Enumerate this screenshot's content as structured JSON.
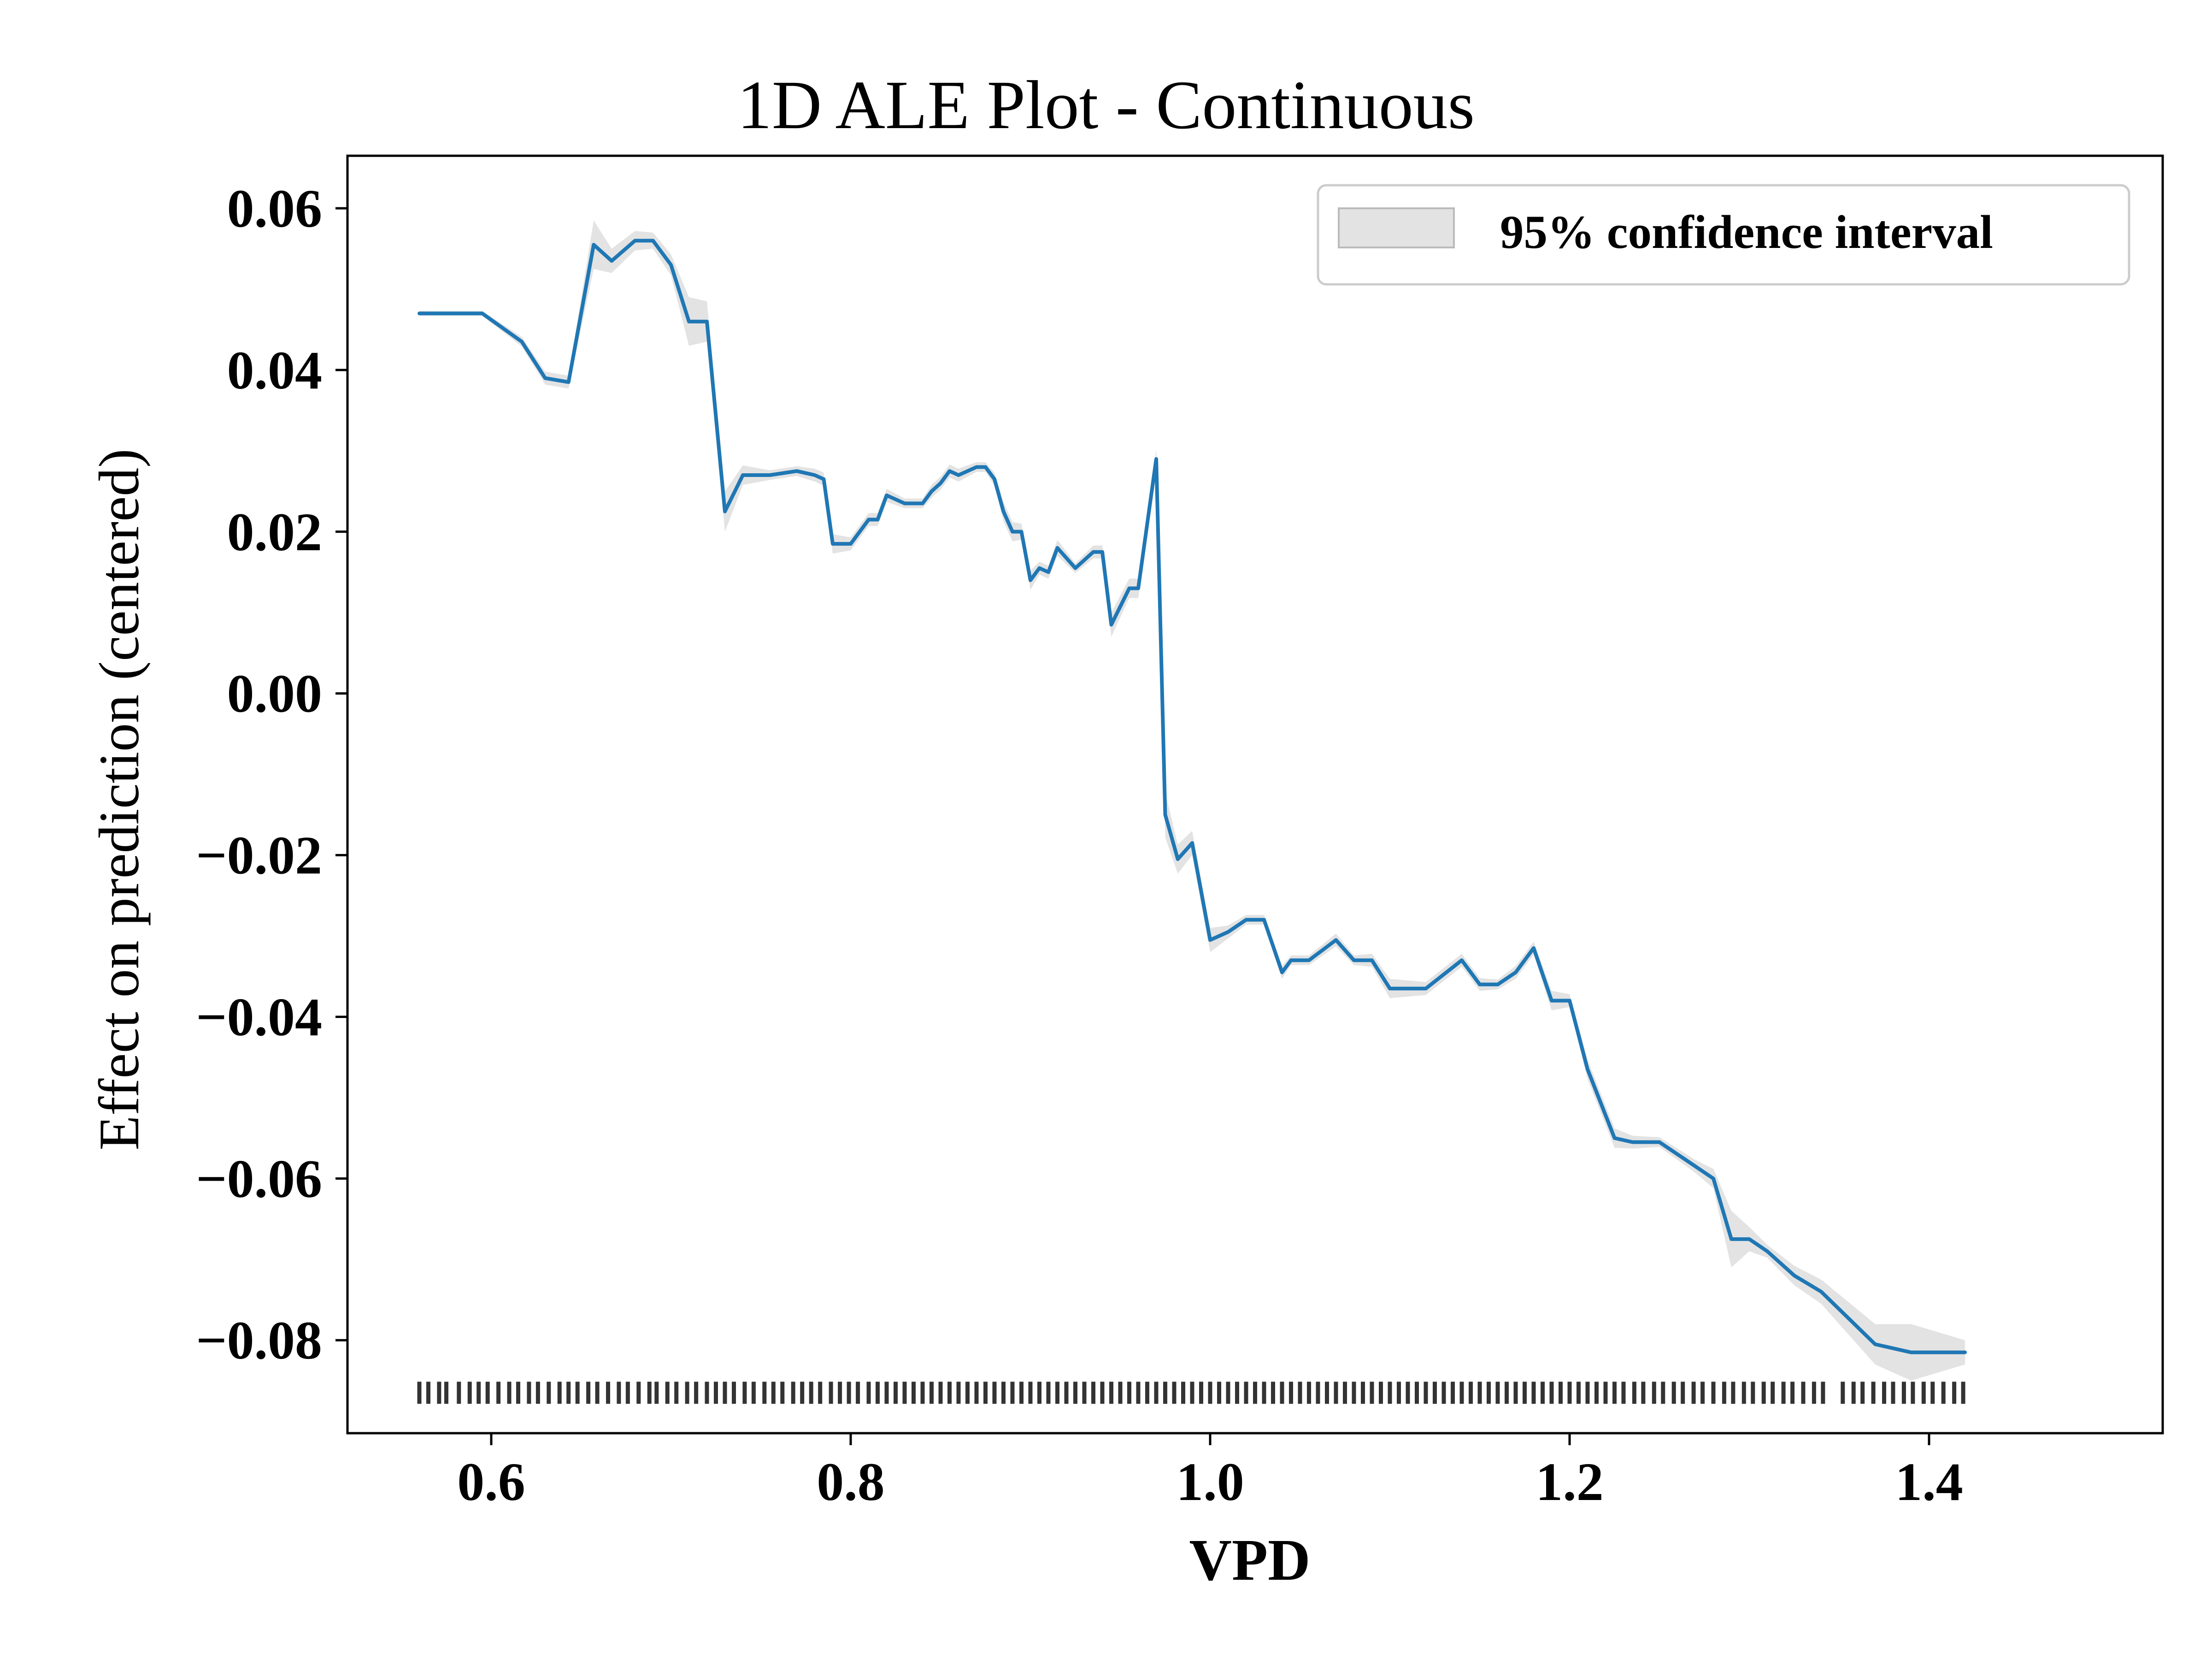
{
  "chart_data": {
    "type": "line",
    "title": "1D ALE Plot - Continuous",
    "xlabel": "VPD",
    "ylabel": "Effect on prediction (centered)",
    "xlim": [
      0.52,
      1.53
    ],
    "ylim": [
      -0.0915,
      0.0665
    ],
    "x_ticks": [
      0.6,
      0.8,
      1.0,
      1.2,
      1.4
    ],
    "x_tick_labels": [
      "0.6",
      "0.8",
      "1.0",
      "1.2",
      "1.4"
    ],
    "y_ticks": [
      0.06,
      0.04,
      0.02,
      0.0,
      -0.02,
      -0.04,
      -0.06,
      -0.08
    ],
    "y_tick_labels": [
      "0.06",
      "0.04",
      "0.02",
      "0.00",
      "−0.02",
      "−0.04",
      "−0.06",
      "−0.08"
    ],
    "legend": {
      "position": "top-right",
      "label": "95% confidence interval"
    },
    "grid": false,
    "colors": {
      "line": "#1f77b4",
      "band": "#d9d9d9",
      "rug": "#000000"
    },
    "series": [
      {
        "x": [
          0.56,
          0.595,
          0.617,
          0.63,
          0.643,
          0.657,
          0.667,
          0.68,
          0.69,
          0.7,
          0.71,
          0.72,
          0.73,
          0.74,
          0.755,
          0.77,
          0.78,
          0.785,
          0.79,
          0.8,
          0.81,
          0.815,
          0.82,
          0.83,
          0.84,
          0.845,
          0.85,
          0.855,
          0.86,
          0.87,
          0.875,
          0.88,
          0.885,
          0.89,
          0.895,
          0.9,
          0.905,
          0.91,
          0.915,
          0.925,
          0.935,
          0.94,
          0.945,
          0.955,
          0.96,
          0.97,
          0.975,
          0.982,
          0.99,
          1.0,
          1.01,
          1.02,
          1.03,
          1.04,
          1.045,
          1.055,
          1.07,
          1.08,
          1.09,
          1.1,
          1.12,
          1.14,
          1.15,
          1.16,
          1.17,
          1.18,
          1.19,
          1.2,
          1.21,
          1.225,
          1.235,
          1.25,
          1.27,
          1.28,
          1.29,
          1.3,
          1.31,
          1.325,
          1.34,
          1.37,
          1.39,
          1.42
        ],
        "y": [
          0.047,
          0.047,
          0.0435,
          0.039,
          0.0385,
          0.0555,
          0.0535,
          0.056,
          0.056,
          0.053,
          0.046,
          0.046,
          0.0225,
          0.027,
          0.027,
          0.0275,
          0.027,
          0.0265,
          0.0185,
          0.0185,
          0.0215,
          0.0215,
          0.0245,
          0.0235,
          0.0235,
          0.025,
          0.026,
          0.0275,
          0.027,
          0.028,
          0.028,
          0.0265,
          0.0225,
          0.02,
          0.02,
          0.014,
          0.0155,
          0.015,
          0.018,
          0.0155,
          0.0175,
          0.0175,
          0.0085,
          0.013,
          0.013,
          0.029,
          -0.015,
          -0.0205,
          -0.0185,
          -0.0305,
          -0.0295,
          -0.028,
          -0.028,
          -0.0345,
          -0.033,
          -0.033,
          -0.0305,
          -0.033,
          -0.033,
          -0.0365,
          -0.0365,
          -0.033,
          -0.036,
          -0.036,
          -0.0345,
          -0.0315,
          -0.038,
          -0.038,
          -0.0465,
          -0.055,
          -0.0555,
          -0.0555,
          -0.0585,
          -0.06,
          -0.0675,
          -0.0675,
          -0.069,
          -0.072,
          -0.074,
          -0.0805,
          -0.0815,
          -0.0815
        ],
        "ci_halfwidth": [
          0.0003,
          0.0003,
          0.0006,
          0.0008,
          0.0008,
          0.003,
          0.0015,
          0.0012,
          0.001,
          0.0013,
          0.003,
          0.0025,
          0.0025,
          0.0012,
          0.0006,
          0.0006,
          0.0008,
          0.0008,
          0.0012,
          0.0008,
          0.0008,
          0.0008,
          0.0008,
          0.0006,
          0.0006,
          0.0008,
          0.0008,
          0.0008,
          0.0008,
          0.0006,
          0.0006,
          0.0008,
          0.0012,
          0.0012,
          0.001,
          0.0012,
          0.0008,
          0.0008,
          0.001,
          0.0006,
          0.0008,
          0.0008,
          0.0015,
          0.0012,
          0.0012,
          0.0012,
          0.0028,
          0.0018,
          0.0015,
          0.0015,
          0.0008,
          0.0006,
          0.0006,
          0.0008,
          0.0006,
          0.0006,
          0.0008,
          0.0006,
          0.0008,
          0.0012,
          0.0008,
          0.0008,
          0.0008,
          0.0006,
          0.0008,
          0.0008,
          0.0012,
          0.0008,
          0.0012,
          0.0012,
          0.0008,
          0.0006,
          0.0008,
          0.0012,
          0.0035,
          0.0015,
          0.0008,
          0.0012,
          0.0015,
          0.0025,
          0.0035,
          0.0015
        ]
      }
    ],
    "rug": {
      "y": -0.0865,
      "x": [
        0.56,
        0.565,
        0.571,
        0.575,
        0.582,
        0.588,
        0.593,
        0.598,
        0.604,
        0.61,
        0.615,
        0.621,
        0.626,
        0.632,
        0.638,
        0.643,
        0.648,
        0.654,
        0.659,
        0.665,
        0.671,
        0.676,
        0.682,
        0.688,
        0.692,
        0.698,
        0.703,
        0.709,
        0.714,
        0.72,
        0.725,
        0.73,
        0.735,
        0.741,
        0.746,
        0.752,
        0.757,
        0.762,
        0.768,
        0.773,
        0.778,
        0.783,
        0.789,
        0.794,
        0.799,
        0.804,
        0.81,
        0.815,
        0.82,
        0.825,
        0.83,
        0.835,
        0.84,
        0.845,
        0.85,
        0.855,
        0.86,
        0.865,
        0.87,
        0.875,
        0.88,
        0.885,
        0.89,
        0.895,
        0.9,
        0.905,
        0.91,
        0.915,
        0.92,
        0.925,
        0.93,
        0.935,
        0.94,
        0.945,
        0.95,
        0.955,
        0.96,
        0.965,
        0.97,
        0.975,
        0.98,
        0.985,
        0.99,
        0.995,
        1.0,
        1.005,
        1.01,
        1.015,
        1.02,
        1.025,
        1.03,
        1.035,
        1.04,
        1.045,
        1.05,
        1.055,
        1.06,
        1.065,
        1.07,
        1.075,
        1.08,
        1.085,
        1.09,
        1.095,
        1.1,
        1.105,
        1.11,
        1.115,
        1.12,
        1.125,
        1.13,
        1.135,
        1.14,
        1.145,
        1.15,
        1.155,
        1.16,
        1.165,
        1.17,
        1.175,
        1.18,
        1.185,
        1.19,
        1.195,
        1.2,
        1.205,
        1.21,
        1.215,
        1.22,
        1.225,
        1.23,
        1.236,
        1.241,
        1.247,
        1.252,
        1.258,
        1.263,
        1.269,
        1.274,
        1.28,
        1.286,
        1.291,
        1.297,
        1.302,
        1.308,
        1.313,
        1.319,
        1.324,
        1.33,
        1.336,
        1.341,
        1.352,
        1.358,
        1.363,
        1.369,
        1.375,
        1.38,
        1.386,
        1.391,
        1.397,
        1.402,
        1.408,
        1.414,
        1.419
      ]
    }
  }
}
